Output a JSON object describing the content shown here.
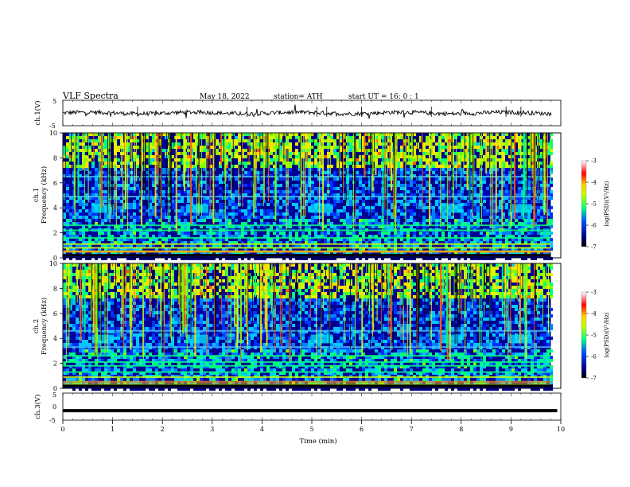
{
  "header": {
    "title": "VLF  Spectra",
    "date": "May 18, 2022",
    "station": "station= ATH",
    "start": "start  UT  =    16: 0   : 1"
  },
  "chart_data": [
    {
      "type": "line",
      "name": "ch1-waveform",
      "ylabel": "ch.1(V)",
      "xlim": [
        0,
        10
      ],
      "ylim": [
        -5,
        5
      ],
      "yticks": [
        "5",
        "-5"
      ],
      "baseline": 0,
      "spike_times": [
        1.5,
        3.7,
        5.1,
        5.3,
        6.0,
        7.4,
        8.9,
        9.2
      ]
    },
    {
      "type": "heatmap",
      "name": "ch1-spectrogram",
      "ylabel_line1": "ch.1",
      "ylabel_line2": "Frequency  (kHz)",
      "xlim": [
        0,
        9.8
      ],
      "ylim": [
        0,
        10
      ],
      "yticks": [
        "0",
        "2",
        "4",
        "6",
        "8",
        "10"
      ],
      "colorbar": {
        "label": "log(PSD)(V²/Hz)",
        "range": [
          -7,
          -3
        ],
        "ticks": [
          "-3",
          "-4",
          "-5",
          "-6",
          "-7"
        ]
      },
      "burst_times": [
        0.8,
        2.7,
        5.2,
        7.8,
        9.2
      ],
      "bright_bands_khz": [
        0.5,
        0.8,
        1.1,
        1.6,
        2.2,
        2.6,
        4.9,
        6.5
      ]
    },
    {
      "type": "heatmap",
      "name": "ch2-spectrogram",
      "ylabel_line1": "ch.2",
      "ylabel_line2": "Frequency  (kHz)",
      "xlim": [
        0,
        9.8
      ],
      "ylim": [
        0,
        10
      ],
      "yticks": [
        "0",
        "2",
        "4",
        "6",
        "8",
        "10"
      ],
      "colorbar": {
        "label": "log(PSD)(V²/Hz)",
        "range": [
          -7,
          -3
        ],
        "ticks": [
          "-3",
          "-4",
          "-5",
          "-6",
          "-7"
        ]
      },
      "burst_times": [
        0.8,
        2.7,
        5.2,
        7.8,
        9.2
      ],
      "bright_bands_khz": [
        0.3,
        0.9,
        1.3,
        1.8,
        2.1,
        2.6,
        3.3,
        4.6
      ]
    },
    {
      "type": "line",
      "name": "ch3-waveform",
      "ylabel": "ch.3(V)",
      "xlabel": "Time  (min)",
      "xlim": [
        0,
        10
      ],
      "ylim": [
        -5,
        5
      ],
      "yticks": [
        "5",
        "0",
        "-5"
      ],
      "baseline": -1.5,
      "xticks": [
        "0",
        "1",
        "2",
        "3",
        "4",
        "5",
        "6",
        "7",
        "8",
        "9",
        "10"
      ]
    }
  ],
  "colors": {
    "scale": [
      "#00008b",
      "#0000ff",
      "#00a0ff",
      "#00ff80",
      "#c0ff00",
      "#ffe000",
      "#ff6000",
      "#ff0000",
      "#ffffff"
    ]
  }
}
